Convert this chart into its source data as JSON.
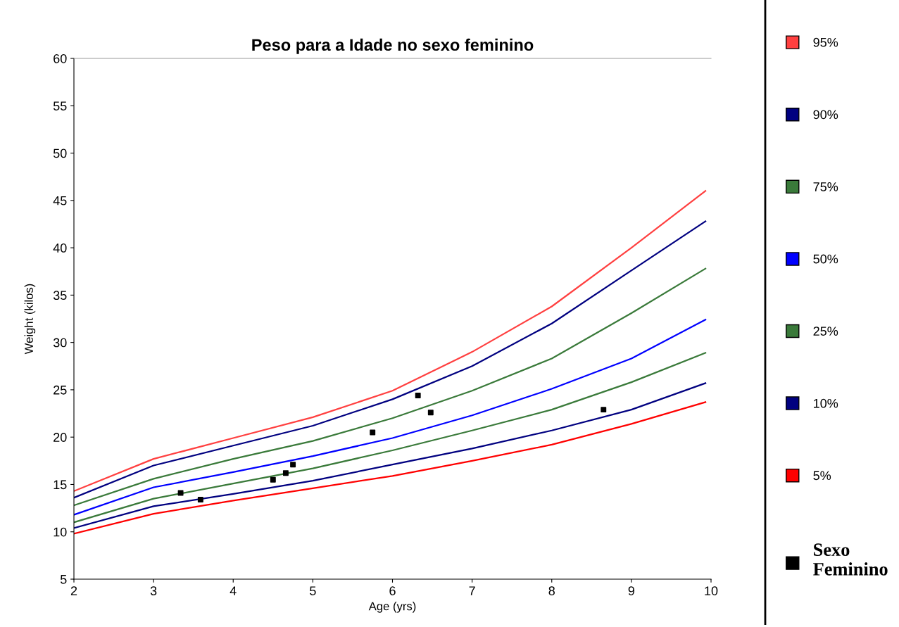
{
  "chart_data": {
    "type": "line",
    "title": "Peso para a Idade no sexo feminino",
    "xlabel": "Age (yrs)",
    "ylabel": "Weight (kilos)",
    "xlim": [
      2,
      10
    ],
    "xticks": [
      2,
      3,
      4,
      5,
      6,
      7,
      8,
      9,
      10
    ],
    "ylim": [
      5,
      60
    ],
    "yticks": [
      5,
      10,
      15,
      20,
      25,
      30,
      35,
      40,
      45,
      50,
      55,
      60
    ],
    "grid": false,
    "legend": "right",
    "marker": "none",
    "line_style": "solid",
    "x": [
      2,
      3,
      4,
      5,
      6,
      7,
      8,
      9,
      9.93
    ],
    "series": [
      {
        "name": "95%",
        "color": "#ff4040",
        "values": [
          14.3,
          17.7,
          19.9,
          22.1,
          24.9,
          29.0,
          33.8,
          40.0,
          46.0
        ]
      },
      {
        "name": "90%",
        "color": "#000080",
        "values": [
          13.6,
          17.0,
          19.1,
          21.2,
          24.0,
          27.5,
          32.0,
          37.6,
          42.8
        ]
      },
      {
        "name": "75%",
        "color": "#3a7a3a",
        "values": [
          12.8,
          15.6,
          17.7,
          19.6,
          22.0,
          24.9,
          28.3,
          33.1,
          37.8
        ]
      },
      {
        "name": "50%",
        "color": "#0000ff",
        "values": [
          11.8,
          14.7,
          16.3,
          18.0,
          19.9,
          22.3,
          25.1,
          28.3,
          32.4
        ]
      },
      {
        "name": "25%",
        "color": "#3a7a3a",
        "values": [
          11.0,
          13.5,
          15.1,
          16.7,
          18.6,
          20.7,
          22.9,
          25.8,
          28.9
        ]
      },
      {
        "name": "10%",
        "color": "#000080",
        "values": [
          10.4,
          12.7,
          14.0,
          15.4,
          17.1,
          18.8,
          20.7,
          22.9,
          25.7
        ]
      },
      {
        "name": "5%",
        "color": "#ff0000",
        "values": [
          9.8,
          11.9,
          13.3,
          14.6,
          15.9,
          17.5,
          19.2,
          21.4,
          23.7
        ]
      },
      {
        "name": "Sexo Feminino",
        "type": "scatter",
        "marker": "square",
        "color": "#000000",
        "x": [
          3.34,
          3.59,
          4.5,
          4.66,
          4.75,
          5.75,
          6.32,
          6.48,
          8.65
        ],
        "values": [
          14.1,
          13.4,
          15.5,
          16.2,
          17.1,
          20.5,
          24.4,
          22.6,
          22.9
        ]
      }
    ]
  }
}
